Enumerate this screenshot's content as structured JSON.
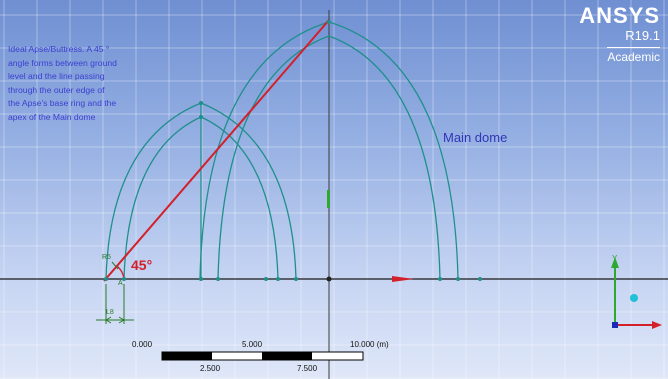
{
  "note": {
    "lines": [
      "Ideal Apse/Buttress. A 45 °",
      "angle forms between ground",
      "level and the line passing",
      "through the outer edge of",
      "the Apse's base ring and the",
      "apex of the Main dome"
    ]
  },
  "labels": {
    "main_dome": "Main dome",
    "angle": "45°",
    "dimension_value": "L8",
    "radius_marker": "R5",
    "angle_marker": "A"
  },
  "brand": {
    "name": "ANSYS",
    "version": "R19.1",
    "edition": "Academic"
  },
  "scale_bar": {
    "upper_labels": [
      "0.000",
      "5.000",
      "10.000 (m)"
    ],
    "lower_labels": [
      "2.500",
      "7.500"
    ]
  },
  "triad": {
    "y_label": "Y"
  },
  "colors": {
    "background_top": "#6f8fd2",
    "background_bottom": "#dfe7f8",
    "sketch_line": "#1f8f8a",
    "construction_line": "#d3202a",
    "text_blue": "#3b3fcf"
  }
}
